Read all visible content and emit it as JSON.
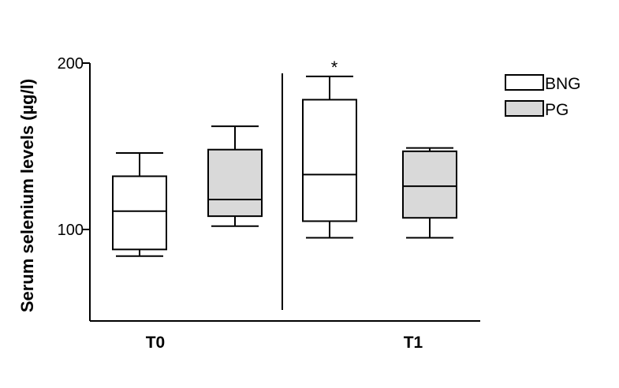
{
  "chart_data": {
    "type": "box",
    "ylabel": "Serum selenium levels (µg/l)",
    "xlabel": "",
    "ylim": [
      45,
      200
    ],
    "yticks": [
      100,
      200
    ],
    "ytick_labels": [
      "100",
      "200"
    ],
    "categories": [
      "T0",
      "T1"
    ],
    "legend_position": "top-right",
    "grid": false,
    "series": [
      {
        "name": "BNG",
        "color": "#ffffff",
        "boxes": [
          {
            "category": "T0",
            "min": 84,
            "q1": 88,
            "median": 111,
            "q3": 132,
            "max": 146
          },
          {
            "category": "T1",
            "min": 95,
            "q1": 105,
            "median": 133,
            "q3": 178,
            "max": 192
          }
        ]
      },
      {
        "name": "PG",
        "color": "#d9d9d9",
        "boxes": [
          {
            "category": "T0",
            "min": 102,
            "q1": 108,
            "median": 118,
            "q3": 148,
            "max": 162
          },
          {
            "category": "T1",
            "min": 95,
            "q1": 107,
            "median": 126,
            "q3": 147,
            "max": 149
          }
        ]
      }
    ],
    "annotations": [
      {
        "text": "*",
        "category": "T1",
        "series": "BNG"
      }
    ]
  }
}
